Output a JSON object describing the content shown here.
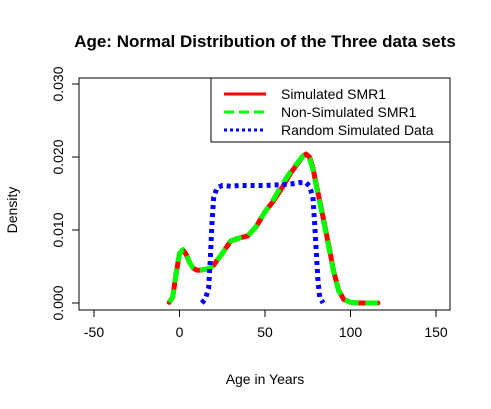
{
  "chart_data": {
    "type": "line",
    "title": "Age: Normal Distribution of the Three data sets",
    "xlabel": "Age in Years",
    "ylabel": "Density",
    "xlim": [
      -50,
      150
    ],
    "ylim": [
      0,
      0.03
    ],
    "xticks": [
      -50,
      0,
      50,
      100,
      150
    ],
    "yticks": [
      0.0,
      0.01,
      0.02,
      0.03
    ],
    "xtick_labels": [
      "-50",
      "0",
      "50",
      "100",
      "150"
    ],
    "ytick_labels": [
      "0.000",
      "0.010",
      "0.020",
      "0.030"
    ],
    "grid": false,
    "legend_position": "top-right",
    "series": [
      {
        "name": "Simulated SMR1",
        "color": "#ff0000",
        "dash": "solid",
        "x": [
          -6,
          -4,
          -2,
          0,
          2,
          4,
          6,
          8,
          10,
          12,
          15,
          18,
          20,
          25,
          30,
          35,
          40,
          45,
          50,
          55,
          60,
          65,
          70,
          72,
          74,
          76,
          78,
          80,
          82,
          85,
          88,
          90,
          93,
          96,
          100,
          105,
          110,
          116
        ],
        "y": [
          0.0001,
          0.0008,
          0.004,
          0.0068,
          0.0073,
          0.0066,
          0.0055,
          0.0048,
          0.0045,
          0.0045,
          0.0046,
          0.0048,
          0.0052,
          0.0068,
          0.0085,
          0.0089,
          0.0092,
          0.0105,
          0.0125,
          0.014,
          0.0158,
          0.0178,
          0.0194,
          0.0201,
          0.0204,
          0.02,
          0.0185,
          0.0162,
          0.014,
          0.0105,
          0.007,
          0.0045,
          0.0018,
          0.0005,
          0.0001,
          0.0,
          0.0,
          0.0
        ]
      },
      {
        "name": "Non-Simulated SMR1",
        "color": "#00ff00",
        "dash": "dashed",
        "x": [
          -6,
          -4,
          -2,
          0,
          2,
          4,
          6,
          8,
          10,
          12,
          15,
          18,
          20,
          25,
          30,
          35,
          40,
          45,
          50,
          55,
          60,
          65,
          70,
          72,
          74,
          76,
          78,
          80,
          82,
          85,
          88,
          90,
          93,
          96,
          100,
          105,
          110,
          116
        ],
        "y": [
          0.0001,
          0.0008,
          0.004,
          0.0068,
          0.0073,
          0.0066,
          0.0055,
          0.0048,
          0.0045,
          0.0045,
          0.0046,
          0.0048,
          0.0052,
          0.0068,
          0.0085,
          0.0089,
          0.0092,
          0.0105,
          0.0125,
          0.0142,
          0.0162,
          0.018,
          0.0195,
          0.0201,
          0.0203,
          0.0198,
          0.0183,
          0.016,
          0.0138,
          0.0103,
          0.0068,
          0.0044,
          0.0017,
          0.0005,
          0.0001,
          0.0,
          0.0,
          0.0
        ]
      },
      {
        "name": "Random Simulated Data",
        "color": "#0000ff",
        "dash": "dotted",
        "x": [
          13,
          15,
          17,
          18,
          19,
          20,
          22,
          25,
          30,
          35,
          40,
          50,
          60,
          65,
          70,
          74,
          76,
          78,
          79,
          80,
          81,
          82,
          84
        ],
        "y": [
          0.0,
          0.0005,
          0.002,
          0.006,
          0.011,
          0.0145,
          0.0158,
          0.0161,
          0.016,
          0.0161,
          0.0161,
          0.0161,
          0.0162,
          0.0163,
          0.0165,
          0.0165,
          0.016,
          0.0145,
          0.011,
          0.007,
          0.003,
          0.0008,
          0.0
        ]
      }
    ]
  }
}
